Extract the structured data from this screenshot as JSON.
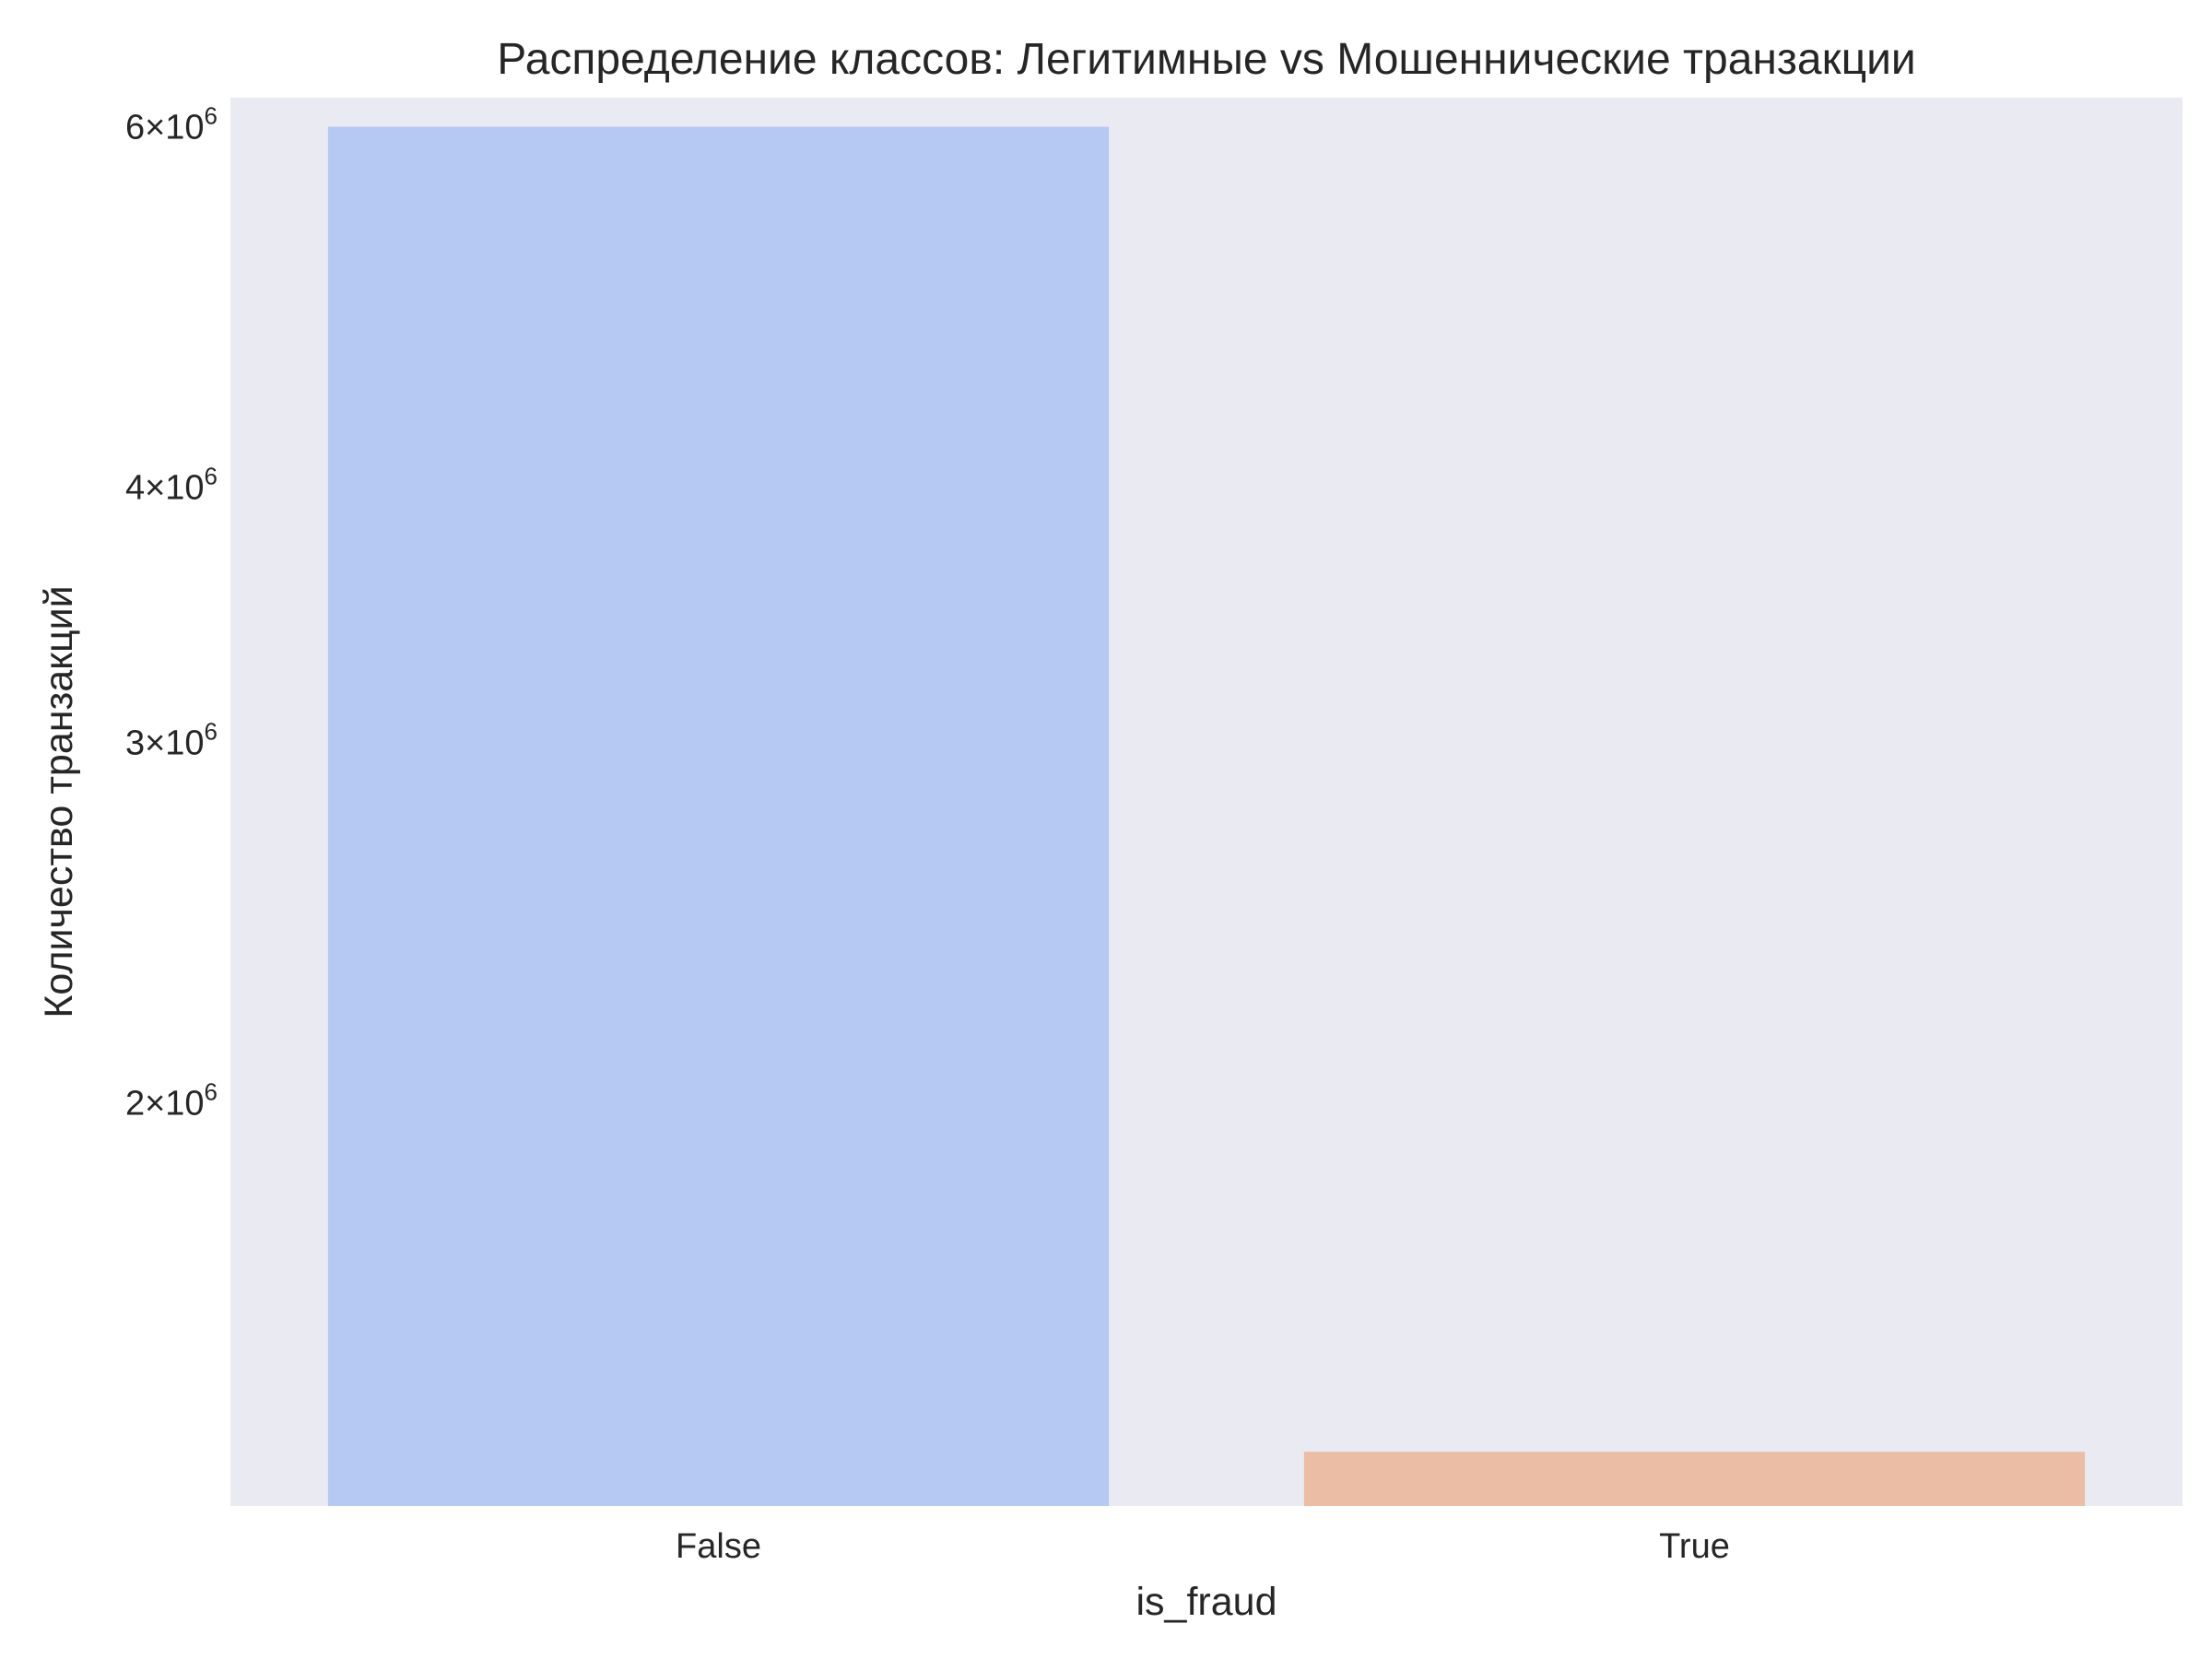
{
  "chart_data": {
    "type": "bar",
    "title": "Распределение классов: Легитимные vs Мошеннические транзакции",
    "xlabel": "is_fraud",
    "ylabel": "Количество транзакций",
    "categories": [
      "False",
      "True"
    ],
    "values": [
      6000000,
      1350000
    ],
    "yscale": "log",
    "ylim": [
      1270000,
      6200000
    ],
    "yticks": [
      {
        "value": 2000000,
        "mantissa": "2",
        "base": "10",
        "exponent": "6"
      },
      {
        "value": 3000000,
        "mantissa": "3",
        "base": "10",
        "exponent": "6"
      },
      {
        "value": 4000000,
        "mantissa": "4",
        "base": "10",
        "exponent": "6"
      },
      {
        "value": 6000000,
        "mantissa": "6",
        "base": "10",
        "exponent": "6"
      }
    ],
    "tick_times_symbol": "×",
    "grid": false,
    "bar_colors": [
      "#b5c9f2",
      "#ecbda5"
    ],
    "plot_background": "#eaeaf2"
  }
}
